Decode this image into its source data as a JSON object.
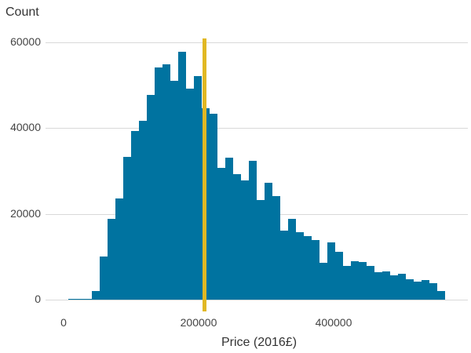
{
  "chart_data": {
    "type": "bar",
    "subtype": "histogram",
    "title": "",
    "xlabel": "Price (2016£)",
    "ylabel": "Count",
    "xlim": [
      0,
      570000
    ],
    "ylim": [
      0,
      60000
    ],
    "x_ticks": [
      "0",
      "200000",
      "400000"
    ],
    "y_ticks": [
      "0",
      "20000",
      "40000",
      "60000"
    ],
    "grid": true,
    "legend": null,
    "bin_start": 7000,
    "bin_width": 11628,
    "values": [
      200,
      200,
      200,
      2000,
      10100,
      18900,
      23600,
      33300,
      39400,
      41700,
      47700,
      54100,
      54900,
      51000,
      57800,
      49200,
      52100,
      44600,
      43300,
      30700,
      33100,
      29300,
      27800,
      32400,
      23200,
      27300,
      24100,
      16100,
      18800,
      15700,
      14800,
      13900,
      8600,
      13400,
      11200,
      7900,
      9000,
      8800,
      7900,
      6400,
      6600,
      5700,
      6000,
      4800,
      4200,
      4600,
      3800,
      2000
    ],
    "bar_color": "#0073a0",
    "reference_line": {
      "x": 208700,
      "color": "#e1b823",
      "orientation": "vertical"
    }
  },
  "axes": {
    "ylabel": "Count",
    "xlabel": "Price (2016£)",
    "yticks": [
      {
        "label": "60000",
        "value": 60000
      },
      {
        "label": "40000",
        "value": 40000
      },
      {
        "label": "20000",
        "value": 20000
      },
      {
        "label": "0",
        "value": 0
      }
    ],
    "xticks": [
      {
        "label": "0",
        "value": 0
      },
      {
        "label": "200000",
        "value": 200000
      },
      {
        "label": "400000",
        "value": 400000
      }
    ]
  }
}
